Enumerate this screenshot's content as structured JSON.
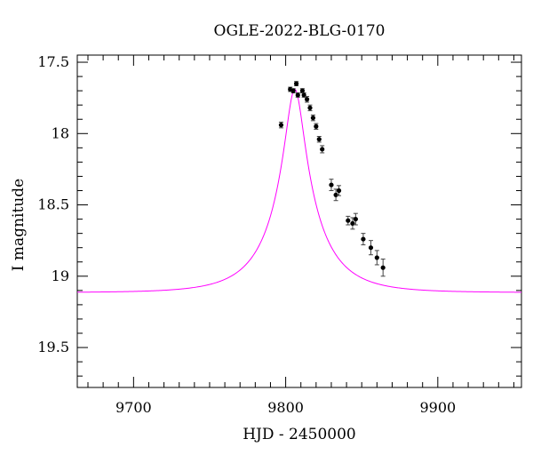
{
  "chart_data": {
    "type": "scatter",
    "title": "OGLE-2022-BLG-0170",
    "xlabel": "HJD - 2450000",
    "ylabel": "I magnitude",
    "xlim": [
      9663,
      9955
    ],
    "ylim": [
      17.45,
      19.78
    ],
    "y_inverted": true,
    "grid": false,
    "x_ticks": [
      {
        "value": 9700,
        "label": "9700"
      },
      {
        "value": 9800,
        "label": "9800"
      },
      {
        "value": 9900,
        "label": "9900"
      }
    ],
    "y_ticks": [
      {
        "value": 17.5,
        "label": "17.5"
      },
      {
        "value": 18,
        "label": "18"
      },
      {
        "value": 18.5,
        "label": "18.5"
      },
      {
        "value": 19,
        "label": "19"
      },
      {
        "value": 19.5,
        "label": "19.5"
      }
    ],
    "model_color": "#ff00ff",
    "point_color": "#000000",
    "model": {
      "t0": 9806,
      "u0": 0.175,
      "tE": 33.0,
      "base_mag": 19.115,
      "peak_mag": 17.69
    },
    "observations": [
      {
        "x": 9797,
        "y": 17.94,
        "err": 0.02
      },
      {
        "x": 9803,
        "y": 17.69,
        "err": 0.015
      },
      {
        "x": 9805,
        "y": 17.7,
        "err": 0.015
      },
      {
        "x": 9807,
        "y": 17.65,
        "err": 0.015
      },
      {
        "x": 9808,
        "y": 17.73,
        "err": 0.015
      },
      {
        "x": 9811,
        "y": 17.7,
        "err": 0.015
      },
      {
        "x": 9812,
        "y": 17.73,
        "err": 0.015
      },
      {
        "x": 9814,
        "y": 17.76,
        "err": 0.02
      },
      {
        "x": 9816,
        "y": 17.82,
        "err": 0.02
      },
      {
        "x": 9818,
        "y": 17.89,
        "err": 0.02
      },
      {
        "x": 9820,
        "y": 17.95,
        "err": 0.02
      },
      {
        "x": 9822,
        "y": 18.04,
        "err": 0.02
      },
      {
        "x": 9824,
        "y": 18.11,
        "err": 0.025
      },
      {
        "x": 9830,
        "y": 18.36,
        "err": 0.04
      },
      {
        "x": 9833,
        "y": 18.43,
        "err": 0.04
      },
      {
        "x": 9835,
        "y": 18.4,
        "err": 0.035
      },
      {
        "x": 9841,
        "y": 18.61,
        "err": 0.03
      },
      {
        "x": 9844,
        "y": 18.63,
        "err": 0.04
      },
      {
        "x": 9846,
        "y": 18.6,
        "err": 0.04
      },
      {
        "x": 9851,
        "y": 18.74,
        "err": 0.04
      },
      {
        "x": 9856,
        "y": 18.8,
        "err": 0.05
      },
      {
        "x": 9860,
        "y": 18.87,
        "err": 0.05
      },
      {
        "x": 9864,
        "y": 18.94,
        "err": 0.06
      }
    ]
  }
}
